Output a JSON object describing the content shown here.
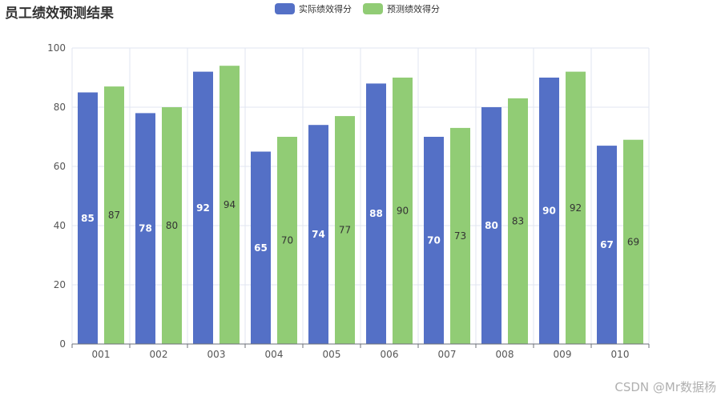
{
  "chart_data": {
    "type": "bar",
    "title": "员工绩效预测结果",
    "categories": [
      "001",
      "002",
      "003",
      "004",
      "005",
      "006",
      "007",
      "008",
      "009",
      "010"
    ],
    "series": [
      {
        "name": "实际绩效得分",
        "color": "#5470c6",
        "values": [
          85,
          78,
          92,
          65,
          74,
          88,
          70,
          80,
          90,
          67
        ]
      },
      {
        "name": "预测绩效得分",
        "color": "#91cc75",
        "values": [
          87,
          80,
          94,
          70,
          77,
          90,
          73,
          83,
          92,
          69
        ]
      }
    ],
    "ylim": [
      0,
      100
    ],
    "yticks": [
      0,
      20,
      40,
      60,
      80,
      100
    ],
    "xlabel": "",
    "ylabel": "",
    "grid": true,
    "legend_position": "top-center"
  },
  "watermark": "CSDN @Mr数据杨"
}
